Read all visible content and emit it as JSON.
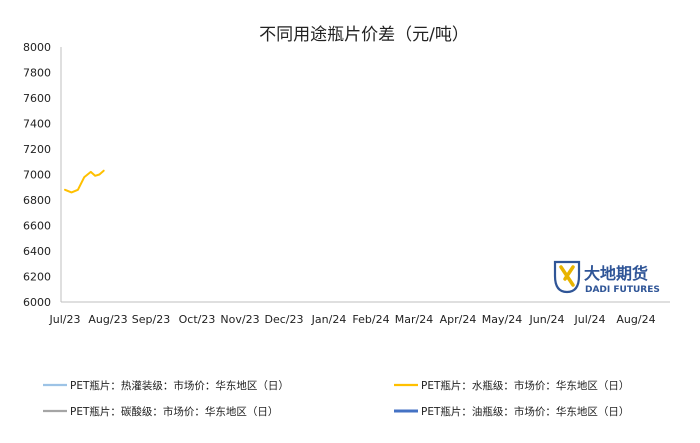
{
  "chart_data": {
    "type": "line",
    "title": "不同用途瓶片价差（元/吨）",
    "xlabel": "",
    "ylabel": "",
    "ylim": [
      6000,
      8000
    ],
    "yticks": [
      6000,
      6200,
      6400,
      6600,
      6800,
      7000,
      7200,
      7400,
      7600,
      7800,
      8000
    ],
    "x_tick_labels": [
      "Jul/23",
      "Aug/23",
      "Sep/23",
      "Oct/23",
      "Nov/23",
      "Dec/23",
      "Jan/24",
      "Feb/24",
      "Mar/24",
      "Apr/24",
      "May/24",
      "Jun/24",
      "Jul/24",
      "Aug/24"
    ],
    "grid": false,
    "legend_position": "bottom",
    "series": [
      {
        "name": "PET瓶片：热灌装级：市场价：华东地区（日）",
        "color": "#9DC3E6",
        "values": []
      },
      {
        "name": "PET瓶片：水瓶级：市场价：华东地区（日）",
        "color": "#FFC000",
        "values": [
          [
            "Jul/23",
            6880
          ],
          [
            "Jul/23+0.15",
            6860
          ],
          [
            "Jul/23+0.3",
            6880
          ],
          [
            "Jul/23+0.45",
            6980
          ],
          [
            "Jul/23+0.6",
            7020
          ],
          [
            "Jul/23+0.7",
            6990
          ],
          [
            "Jul/23+0.8",
            7000
          ],
          [
            "Jul/23+0.9",
            7030
          ]
        ]
      },
      {
        "name": "PET瓶片：碳酸级：市场价：华东地区（日）",
        "color": "#A5A5A5",
        "values": []
      },
      {
        "name": "PET瓶片：油瓶级：市场价：华东地区（日）",
        "color": "#4472C4",
        "values": []
      }
    ]
  },
  "logo": {
    "cn": "大地期货",
    "en": "DADI FUTURES"
  }
}
